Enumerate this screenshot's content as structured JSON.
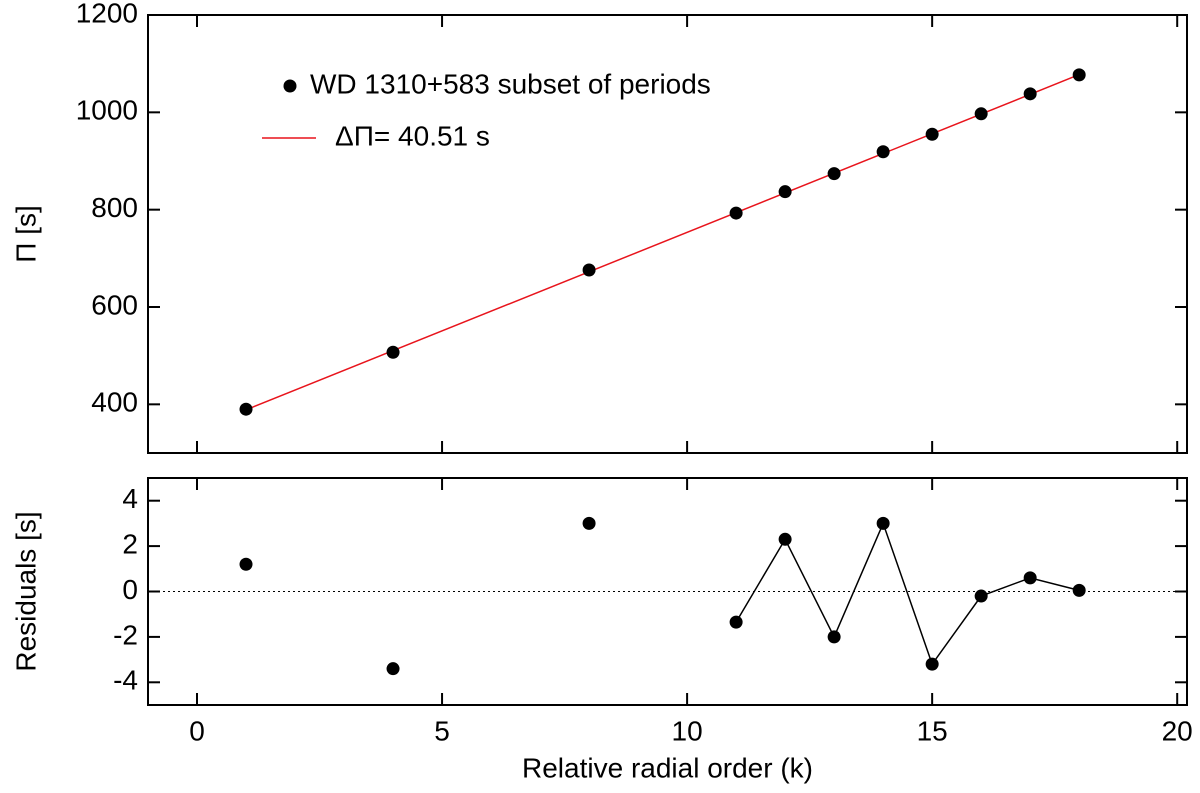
{
  "chart_data": [
    {
      "type": "scatter",
      "ylabel": "Π [s]",
      "xlim": [
        -1,
        20.2
      ],
      "ylim": [
        300,
        1200
      ],
      "yticks": [
        400,
        600,
        800,
        1000,
        1200
      ],
      "legend": "upper-left",
      "series": [
        {
          "name": "WD 1310+583 subset of periods",
          "color": "#000000",
          "marker": "point",
          "x": [
            1,
            4,
            8,
            11,
            12,
            13,
            14,
            15,
            16,
            17,
            18
          ],
          "values": [
            390,
            507,
            676,
            793,
            837,
            874,
            919,
            955,
            997,
            1038,
            1077
          ]
        },
        {
          "name": "ΔΠ= 40.51 s",
          "color": "#e8141c",
          "marker": "line",
          "x": [
            1,
            18
          ],
          "values": [
            388.8,
            1077.5
          ]
        }
      ]
    },
    {
      "type": "scatter",
      "ylabel": "Residuals [s]",
      "xlabel": "Relative radial order (k)",
      "xlim": [
        -1,
        20.2
      ],
      "ylim": [
        -5,
        5
      ],
      "xticks": [
        0,
        5,
        10,
        15,
        20
      ],
      "yticks": [
        -4,
        -2,
        0,
        2,
        4
      ],
      "hline": 0,
      "series": [
        {
          "color": "#000000",
          "marker": "point",
          "x": [
            1,
            4,
            8,
            11,
            12,
            13,
            14,
            15,
            16,
            17,
            18
          ],
          "values": [
            1.2,
            -3.4,
            3.0,
            -1.35,
            2.3,
            -2.0,
            3.0,
            -3.2,
            -0.2,
            0.6,
            0.05
          ]
        },
        {
          "color": "#000000",
          "marker": "line",
          "x": [
            11,
            12,
            13,
            14,
            15,
            16,
            17,
            18
          ],
          "values": [
            -1.35,
            2.3,
            -2.0,
            3.0,
            -3.2,
            -0.2,
            0.6,
            0.05
          ]
        }
      ]
    }
  ]
}
